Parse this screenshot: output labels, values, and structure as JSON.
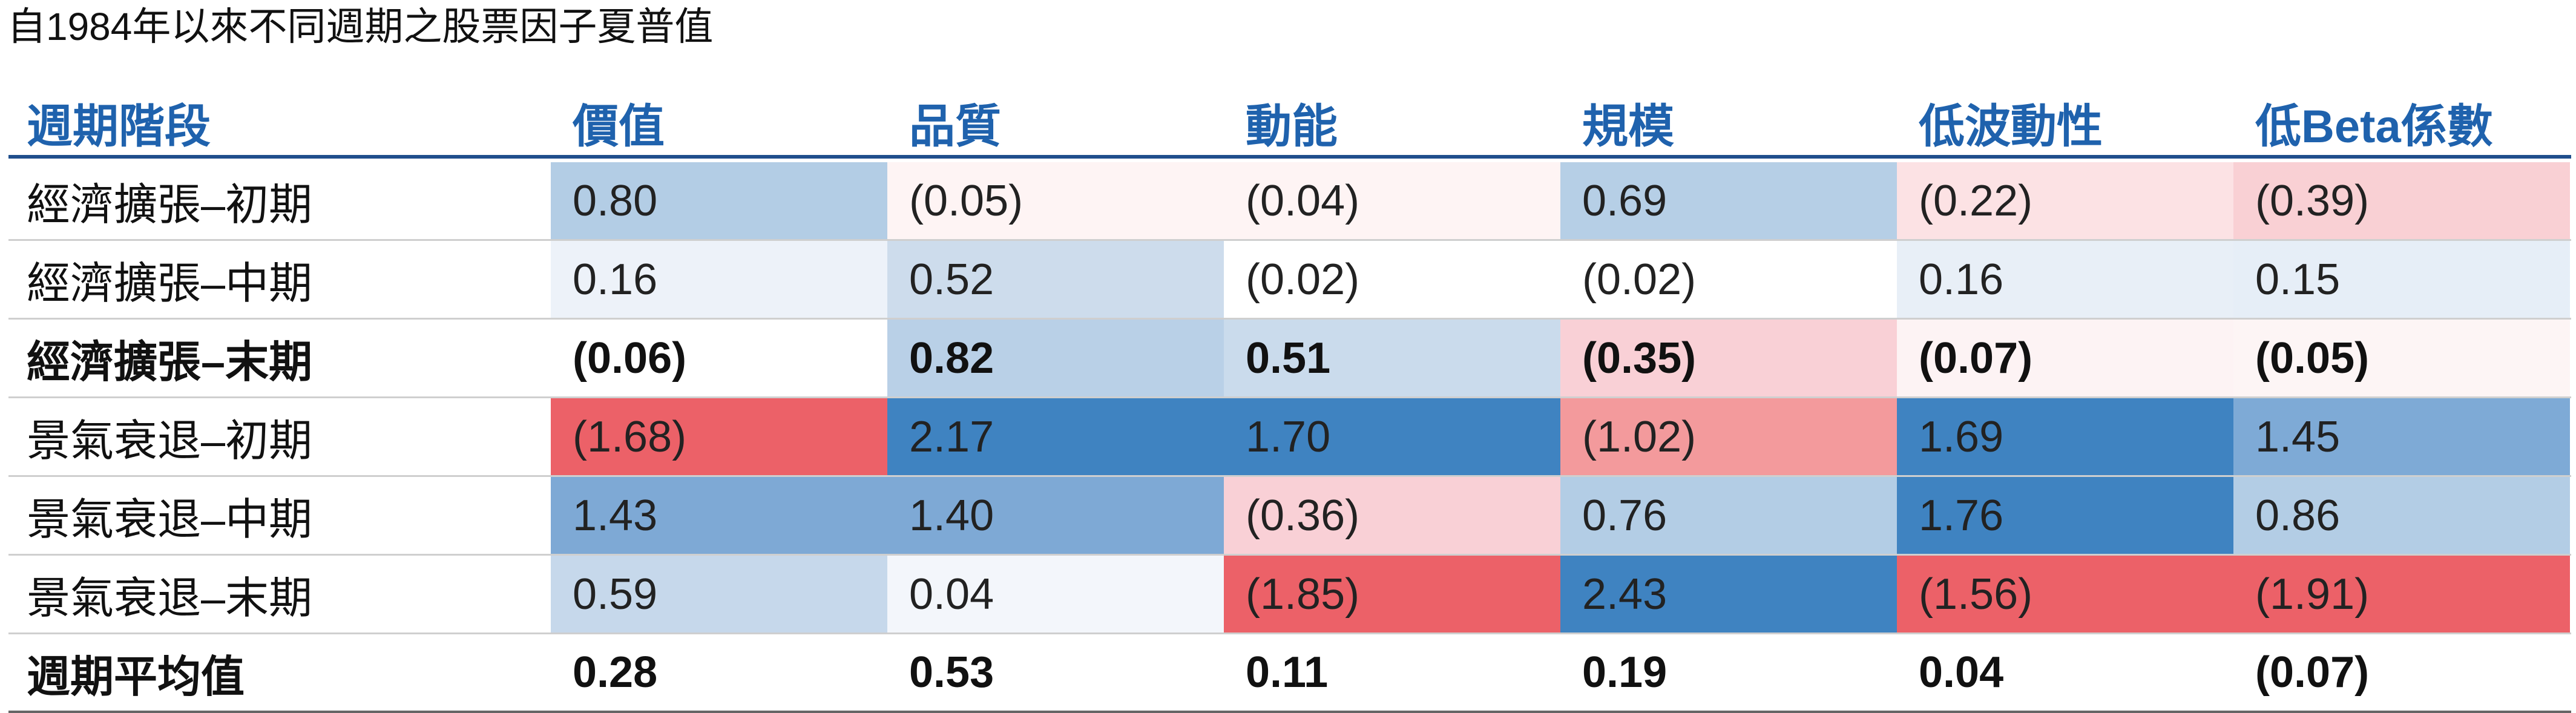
{
  "title": "自1984年以來不同週期之股票因子夏普值",
  "table": {
    "header": [
      "週期階段",
      "價值",
      "品質",
      "動能",
      "規模",
      "低波動性",
      "低Beta係數"
    ],
    "rows": [
      {
        "label": "經濟擴張–初期",
        "bold": false,
        "cells": [
          "0.80",
          "(0.05)",
          "(0.04)",
          "0.69",
          "(0.22)",
          "(0.39)"
        ],
        "colors": [
          "#b3cde5",
          "#fef4f4",
          "#fef4f4",
          "#b6cfe6",
          "#fce2e4",
          "#f9d0d4"
        ]
      },
      {
        "label": "經濟擴張–中期",
        "bold": false,
        "cells": [
          "0.16",
          "0.52",
          "(0.02)",
          "(0.02)",
          "0.16",
          "0.15"
        ],
        "colors": [
          "#edf2f9",
          "#cddcec",
          "#ffffff",
          "#ffffff",
          "#e8eff7",
          "#e6eef7"
        ]
      },
      {
        "label": "經濟擴張–末期",
        "bold": true,
        "cells": [
          "(0.06)",
          "0.82",
          "0.51",
          "(0.35)",
          "(0.07)",
          "(0.05)"
        ],
        "colors": [
          "#ffffff",
          "#b9d0e7",
          "#cadbec",
          "#f9d0d6",
          "#fdf3f4",
          "#fdf5f5"
        ]
      },
      {
        "label": "景氣衰退–初期",
        "bold": false,
        "cells": [
          "(1.68)",
          "2.17",
          "1.70",
          "(1.02)",
          "1.69",
          "1.45"
        ],
        "colors": [
          "#ec6168",
          "#3f83c1",
          "#3f83c1",
          "#f39a9c",
          "#3f83c1",
          "#7eaad6"
        ]
      },
      {
        "label": "景氣衰退–中期",
        "bold": false,
        "cells": [
          "1.43",
          "1.40",
          "(0.36)",
          "0.76",
          "1.76",
          "0.86"
        ],
        "colors": [
          "#7ea9d5",
          "#7ea9d5",
          "#f9d0d6",
          "#b3cde5",
          "#3f83c1",
          "#b3cde5"
        ]
      },
      {
        "label": "景氣衰退–末期",
        "bold": false,
        "cells": [
          "0.59",
          "0.04",
          "(1.85)",
          "2.43",
          "(1.56)",
          "(1.91)"
        ],
        "colors": [
          "#c6d8eb",
          "#f3f6fb",
          "#ec6168",
          "#3f83c1",
          "#ec6168",
          "#ec6168"
        ]
      },
      {
        "label": "週期平均值",
        "bold": true,
        "cells": [
          "0.28",
          "0.53",
          "0.11",
          "0.19",
          "0.04",
          "(0.07)"
        ],
        "colors": [
          "#ffffff",
          "#ffffff",
          "#ffffff",
          "#ffffff",
          "#ffffff",
          "#ffffff"
        ]
      }
    ]
  }
}
